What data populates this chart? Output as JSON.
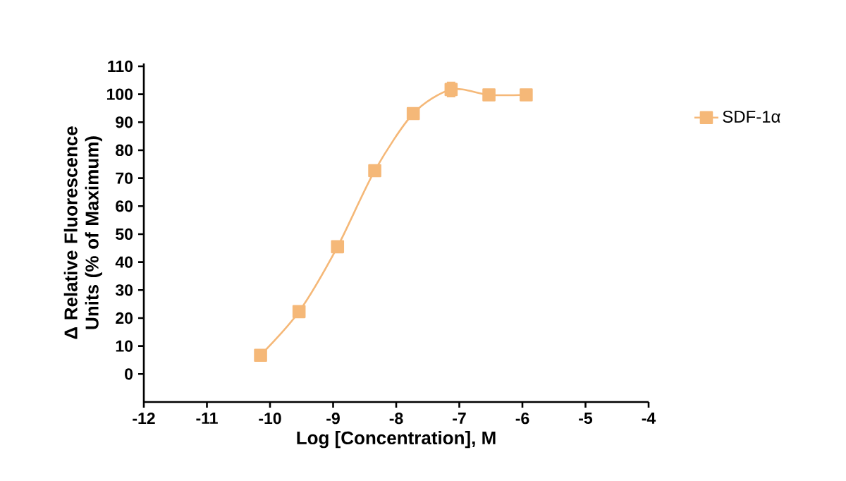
{
  "chart_data": {
    "type": "line",
    "xlabel": "Log [Concentration], M",
    "ylabel": "Δ Relative Fluorescence Units (% of Maximum)",
    "series": [
      {
        "name": "SDF-1α",
        "color": "#f5b878",
        "x": [
          -10.15,
          -9.54,
          -8.93,
          -8.34,
          -7.73,
          -7.13,
          -6.53,
          -5.94
        ],
        "values": [
          6.7,
          22.3,
          45.5,
          72.7,
          93.1,
          101.7,
          99.8,
          99.8
        ],
        "errors": [
          null,
          null,
          null,
          null,
          null,
          2.5,
          null,
          null
        ]
      }
    ],
    "xlim": [
      -12,
      -4
    ],
    "xticks": [
      -12,
      -11,
      -10,
      -9,
      -8,
      -7,
      -6,
      -5,
      -4
    ],
    "ylim": [
      -10,
      111
    ],
    "yticks": [
      0,
      10,
      20,
      30,
      40,
      50,
      60,
      70,
      80,
      90,
      100,
      110
    ],
    "marker": "square",
    "line_style": "solid",
    "legend": "top right",
    "grid": false
  }
}
